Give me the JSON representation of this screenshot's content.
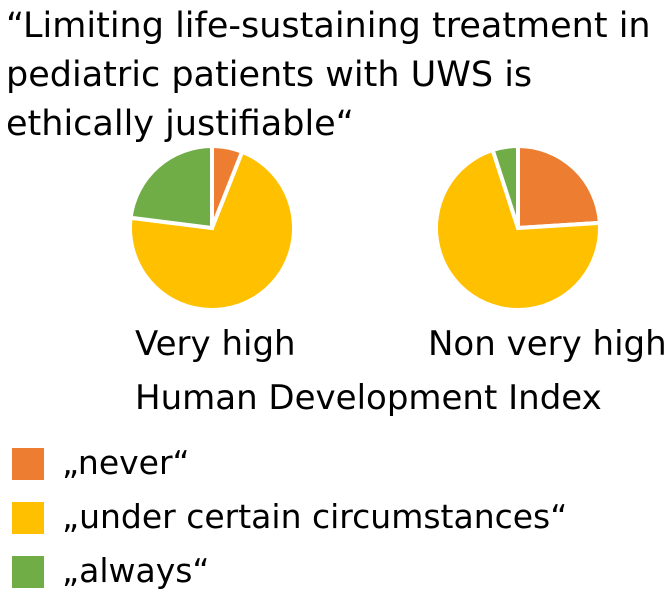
{
  "chart_data": {
    "type": "pie",
    "title": "“Limiting life-sustaining treatment in pediatric patients with UWS is ethically justifiable“",
    "xlabel": "Human Development Index",
    "categories": [
      "„never“",
      "„under certain circumstances“",
      "„always“"
    ],
    "colors": [
      "#ed7d31",
      "#ffc000",
      "#70ad47"
    ],
    "groups": [
      {
        "label": "Very high",
        "values": [
          6,
          71,
          23
        ]
      },
      {
        "label": "Non very high",
        "values": [
          24,
          71,
          5
        ]
      }
    ],
    "legend_position": "bottom-left"
  }
}
